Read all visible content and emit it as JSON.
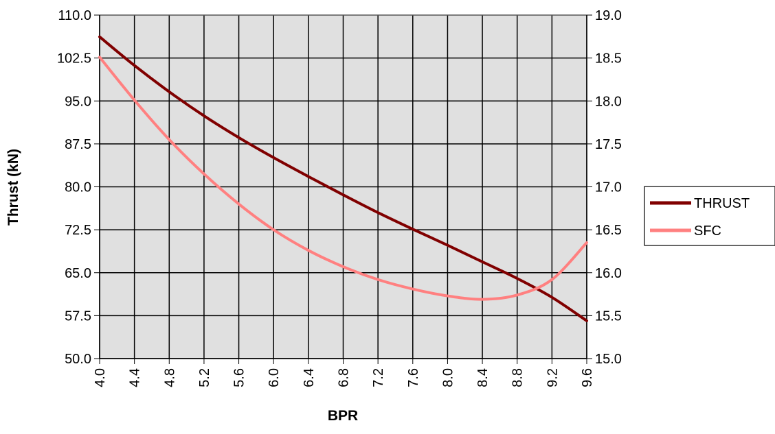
{
  "chart_data": {
    "type": "line",
    "title": "",
    "xlabel": "BPR",
    "ylabel": "Thrust (kN)",
    "y2label": "",
    "x_ticks": [
      "4.0",
      "4.4",
      "4.8",
      "5.2",
      "5.6",
      "6.0",
      "6.4",
      "6.8",
      "7.2",
      "7.6",
      "8.0",
      "8.4",
      "8.8",
      "9.2",
      "9.6"
    ],
    "y_ticks": [
      "50.0",
      "57.5",
      "65.0",
      "72.5",
      "80.0",
      "87.5",
      "95.0",
      "102.5",
      "110.0"
    ],
    "y2_ticks": [
      "15.0",
      "15.5",
      "16.0",
      "16.5",
      "17.0",
      "17.5",
      "18.0",
      "18.5",
      "19.0"
    ],
    "xlim": [
      4.0,
      9.6
    ],
    "ylim": [
      50.0,
      110.0
    ],
    "y2lim": [
      15.0,
      19.0
    ],
    "grid": true,
    "legend_position": "right",
    "plot_background": "#e0e0e0",
    "series": [
      {
        "name": "THRUST",
        "axis": "left",
        "color": "#800000",
        "x": [
          4.0,
          4.4,
          4.8,
          5.2,
          5.6,
          6.0,
          6.4,
          6.8,
          7.2,
          7.6,
          8.0,
          8.4,
          8.8,
          9.2,
          9.6
        ],
        "values": [
          106.2,
          101.2,
          96.6,
          92.4,
          88.6,
          85.1,
          81.8,
          78.6,
          75.5,
          72.6,
          69.8,
          66.9,
          64.0,
          60.7,
          56.6
        ]
      },
      {
        "name": "SFC",
        "axis": "right",
        "color": "#ff8080",
        "x": [
          4.0,
          4.4,
          4.8,
          5.2,
          5.6,
          6.0,
          6.4,
          6.8,
          7.2,
          7.6,
          8.0,
          8.4,
          8.8,
          9.2,
          9.6
        ],
        "values": [
          18.51,
          18.01,
          17.55,
          17.15,
          16.8,
          16.5,
          16.26,
          16.07,
          15.92,
          15.81,
          15.73,
          15.69,
          15.74,
          15.92,
          16.35
        ]
      }
    ]
  }
}
